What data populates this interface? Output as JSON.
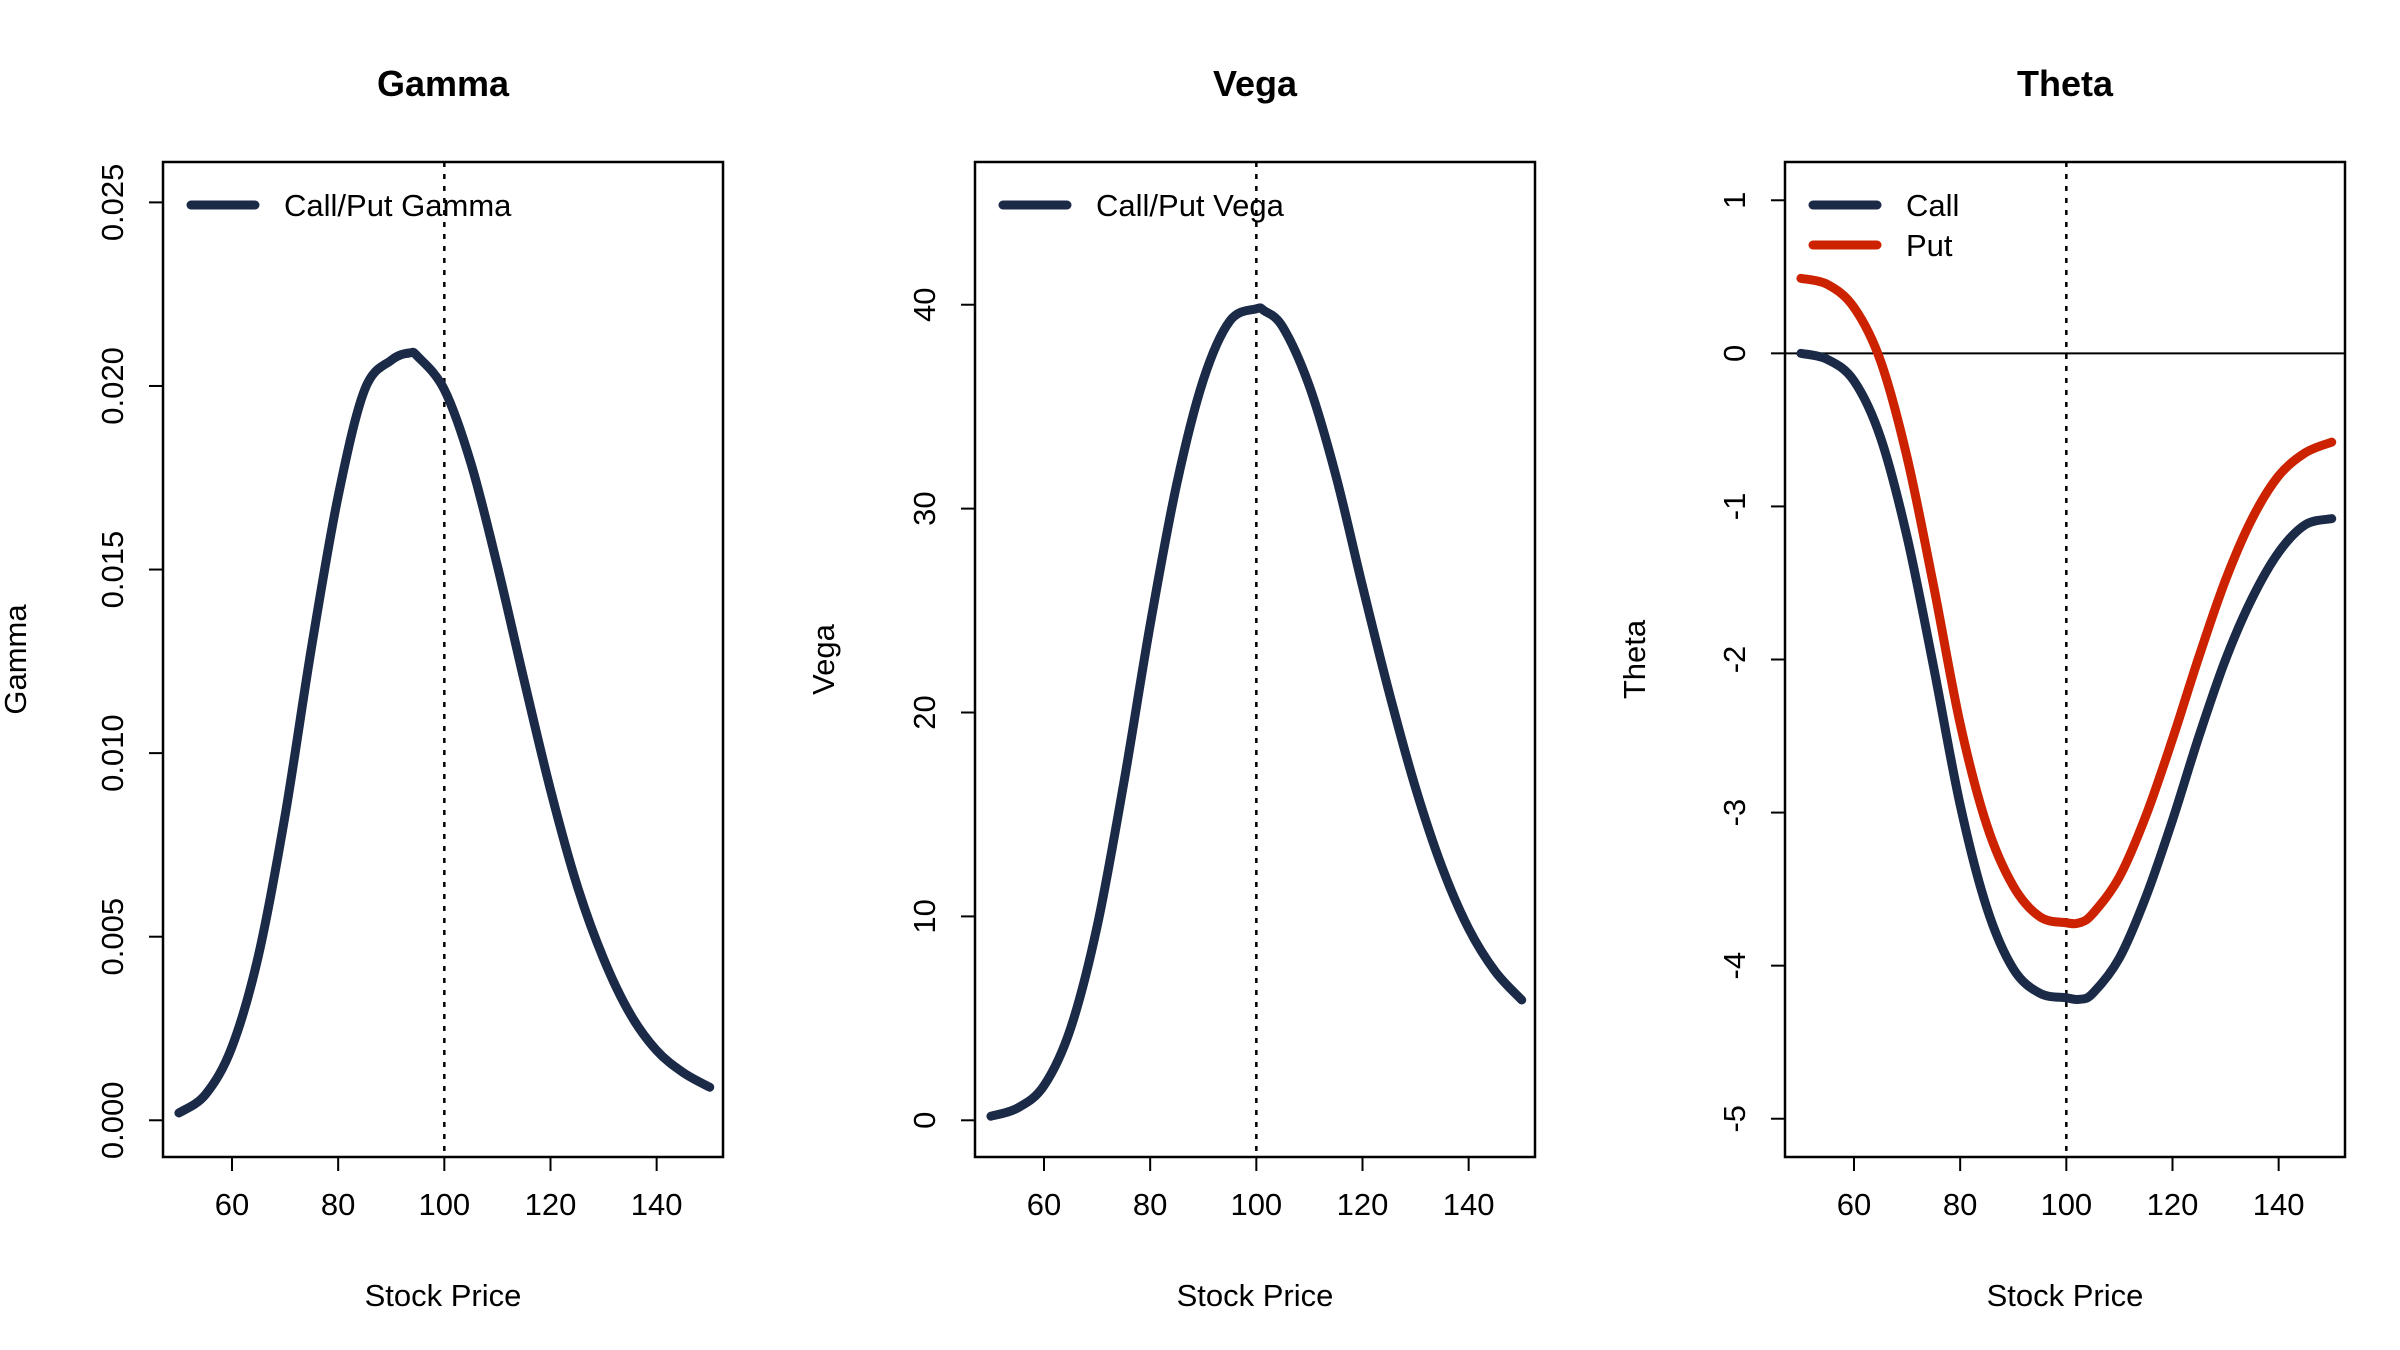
{
  "chart_data": [
    {
      "type": "line",
      "title": "Gamma",
      "xlabel": "Stock Price",
      "ylabel": "Gamma",
      "xlim": [
        47,
        152.5
      ],
      "ylim": [
        -0.001,
        0.0261
      ],
      "xticks": [
        60,
        80,
        100,
        120,
        140
      ],
      "yticks": [
        0.0,
        0.005,
        0.01,
        0.015,
        0.02,
        0.025
      ],
      "ytick_labels": [
        "0.000",
        "0.005",
        "0.010",
        "0.015",
        "0.020",
        "0.025"
      ],
      "vline": 100,
      "hline": null,
      "legend_position": "top-left",
      "x": [
        50,
        55,
        60,
        65,
        70,
        75,
        80,
        85,
        90,
        93.5,
        95,
        100,
        105,
        110,
        115,
        120,
        125,
        130,
        135,
        140,
        145,
        150
      ],
      "series": [
        {
          "name": "Call/Put Gamma",
          "color": "#1b2a47",
          "values": [
            0.0002,
            0.0007,
            0.002,
            0.0045,
            0.0083,
            0.0129,
            0.017,
            0.0199,
            0.0207,
            0.0209,
            0.0208,
            0.0199,
            0.0179,
            0.0151,
            0.012,
            0.009,
            0.0064,
            0.0044,
            0.0029,
            0.0019,
            0.0013,
            0.0009
          ]
        }
      ]
    },
    {
      "type": "line",
      "title": "Vega",
      "xlabel": "Stock Price",
      "ylabel": "Vega",
      "xlim": [
        47,
        152.5
      ],
      "ylim": [
        -1.8,
        47
      ],
      "xticks": [
        60,
        80,
        100,
        120,
        140
      ],
      "yticks": [
        0,
        10,
        20,
        30,
        40
      ],
      "ytick_labels": [
        "0",
        "10",
        "20",
        "30",
        "40"
      ],
      "vline": 100,
      "hline": null,
      "legend_position": "top-left",
      "x": [
        50,
        55,
        60,
        65,
        70,
        75,
        80,
        85,
        90,
        95,
        100,
        101.5,
        105,
        110,
        115,
        120,
        125,
        130,
        135,
        140,
        145,
        150
      ],
      "series": [
        {
          "name": "Call/Put Vega",
          "color": "#1b2a47",
          "values": [
            0.2,
            0.6,
            1.7,
            4.5,
            9.5,
            16.5,
            24.3,
            31.2,
            36.3,
            39.2,
            39.8,
            39.7,
            38.9,
            36.0,
            31.6,
            26.2,
            21.0,
            16.3,
            12.4,
            9.4,
            7.3,
            5.9
          ]
        }
      ]
    },
    {
      "type": "line",
      "title": "Theta",
      "xlabel": "Stock Price",
      "ylabel": "Theta",
      "xlim": [
        47,
        152.5
      ],
      "ylim": [
        -5.25,
        1.25
      ],
      "xticks": [
        60,
        80,
        100,
        120,
        140
      ],
      "yticks": [
        1,
        0,
        -1,
        -2,
        -3,
        -4,
        -5
      ],
      "ytick_labels": [
        "1",
        "0",
        "-1",
        "-2",
        "-3",
        "-4",
        "-5"
      ],
      "vline": 100,
      "hline": 0,
      "legend_position": "top-left",
      "x": [
        50,
        55,
        60,
        65,
        70,
        75,
        80,
        85,
        90,
        95,
        100,
        102.5,
        105,
        110,
        115,
        120,
        125,
        130,
        135,
        140,
        145,
        150
      ],
      "series": [
        {
          "name": "Call",
          "color": "#1b2a47",
          "values": [
            0.0,
            -0.04,
            -0.18,
            -0.55,
            -1.2,
            -2.05,
            -2.95,
            -3.62,
            -4.02,
            -4.18,
            -4.21,
            -4.22,
            -4.18,
            -3.95,
            -3.55,
            -3.05,
            -2.5,
            -2.0,
            -1.6,
            -1.3,
            -1.12,
            -1.08
          ]
        },
        {
          "name": "Put",
          "color": "#cc2200",
          "values": [
            0.49,
            0.45,
            0.3,
            -0.05,
            -0.68,
            -1.52,
            -2.42,
            -3.08,
            -3.48,
            -3.68,
            -3.72,
            -3.72,
            -3.66,
            -3.42,
            -3.02,
            -2.52,
            -1.98,
            -1.48,
            -1.08,
            -0.8,
            -0.65,
            -0.58
          ]
        }
      ]
    }
  ]
}
